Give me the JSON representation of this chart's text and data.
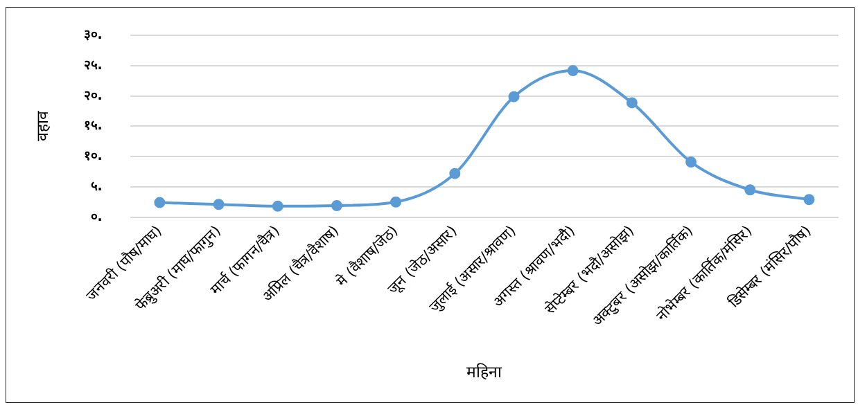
{
  "chart_data": {
    "type": "line",
    "xlabel": "महिना",
    "ylabel": "वहाव",
    "categories": [
      "जनवरी (पौष/माघ)",
      "फेब्रुअरी (माघ/फागुन)",
      "मार्च (फागन/चैत्र)",
      "अप्रिल (चैत्र/वैशाष)",
      "मे (वैशाष/जेठ)",
      "जून (जेठ/असार)",
      "जुलाई (असार/श्रावण)",
      "अगस्त (श्रावण/भदौ)",
      "सेप्टेम्बर (भदौ/असोझ)",
      "अक्टुबर (असोझ/कार्तिक)",
      "नोभेम्बर (कार्तिक/मंसिर)",
      "डिसेम्बर (मंसिर/पौष)"
    ],
    "series": [
      {
        "color": "#5b9bd5",
        "values": [
          2.4,
          2.1,
          1.8,
          1.9,
          2.5,
          7.2,
          19.9,
          24.2,
          18.9,
          9.1,
          4.5,
          2.9
        ]
      }
    ],
    "ylim": [
      0,
      30
    ],
    "yticks": [
      {
        "value": 0,
        "label": "०."
      },
      {
        "value": 5,
        "label": "५."
      },
      {
        "value": 10,
        "label": "१०."
      },
      {
        "value": 15,
        "label": "१५."
      },
      {
        "value": 20,
        "label": "२०."
      },
      {
        "value": 25,
        "label": "२५."
      },
      {
        "value": 30,
        "label": "३०."
      }
    ],
    "grid": "y",
    "marker": "circle",
    "line_style": "solid",
    "legend": false
  }
}
